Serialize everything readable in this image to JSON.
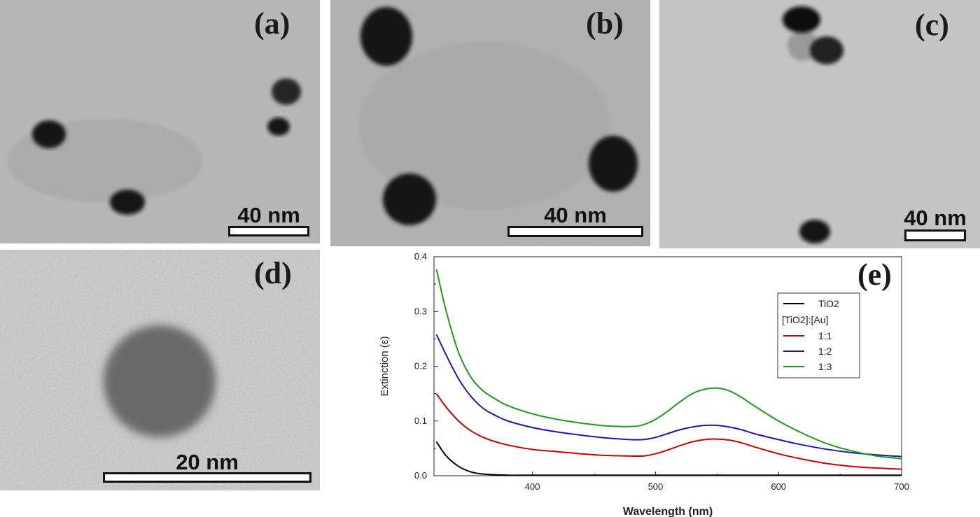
{
  "panels": {
    "a": {
      "label": "(a)",
      "scale": "40 nm"
    },
    "b": {
      "label": "(b)",
      "scale": "40 nm"
    },
    "c": {
      "label": "(c)",
      "scale": "40 nm"
    },
    "d": {
      "label": "(d)",
      "scale": "20 nm"
    },
    "e": {
      "label": "(e)"
    }
  },
  "chart_data": {
    "type": "line",
    "xlabel": "Wavelength (nm)",
    "ylabel": "Extinction (ε)",
    "xlim": [
      320,
      700
    ],
    "ylim": [
      0,
      0.4
    ],
    "xticks": [
      400,
      500,
      600,
      700
    ],
    "yticks": [
      0.0,
      0.1,
      0.2,
      0.3,
      0.4
    ],
    "grid": false,
    "legend_position": "top-right",
    "legend_group_title": "[TiO2]:[Au]",
    "series": [
      {
        "name": "TiO2",
        "color": "#000000",
        "x": [
          322,
          330,
          340,
          350,
          360,
          380,
          400,
          450,
          500,
          550,
          600,
          650,
          700
        ],
        "y": [
          0.062,
          0.036,
          0.017,
          0.007,
          0.003,
          0.001,
          0.001,
          0.001,
          0.001,
          0.001,
          0.001,
          0.001,
          0.001
        ]
      },
      {
        "name": "1:1",
        "color": "#cc0000",
        "x": [
          322,
          330,
          340,
          350,
          360,
          370,
          380,
          400,
          420,
          440,
          460,
          480,
          490,
          500,
          510,
          520,
          530,
          540,
          550,
          560,
          570,
          580,
          600,
          620,
          640,
          660,
          680,
          700
        ],
        "y": [
          0.15,
          0.125,
          0.1,
          0.082,
          0.07,
          0.062,
          0.056,
          0.048,
          0.044,
          0.04,
          0.037,
          0.036,
          0.036,
          0.04,
          0.047,
          0.055,
          0.062,
          0.066,
          0.067,
          0.065,
          0.06,
          0.053,
          0.04,
          0.03,
          0.022,
          0.017,
          0.014,
          0.012
        ]
      },
      {
        "name": "1:2",
        "color": "#1a1aaa",
        "x": [
          322,
          330,
          340,
          350,
          360,
          370,
          380,
          400,
          420,
          440,
          460,
          480,
          490,
          500,
          510,
          520,
          530,
          540,
          550,
          560,
          570,
          580,
          600,
          620,
          640,
          660,
          680,
          700
        ],
        "y": [
          0.258,
          0.22,
          0.177,
          0.145,
          0.123,
          0.11,
          0.1,
          0.088,
          0.08,
          0.074,
          0.069,
          0.066,
          0.066,
          0.07,
          0.077,
          0.084,
          0.089,
          0.092,
          0.092,
          0.089,
          0.084,
          0.077,
          0.066,
          0.056,
          0.048,
          0.042,
          0.038,
          0.035
        ]
      },
      {
        "name": "1:3",
        "color": "#1e9a1e",
        "x": [
          322,
          330,
          340,
          350,
          360,
          370,
          380,
          400,
          420,
          440,
          460,
          480,
          490,
          500,
          510,
          520,
          530,
          540,
          550,
          560,
          570,
          580,
          600,
          620,
          640,
          660,
          680,
          700
        ],
        "y": [
          0.377,
          0.3,
          0.225,
          0.18,
          0.155,
          0.14,
          0.128,
          0.113,
          0.103,
          0.096,
          0.091,
          0.09,
          0.093,
          0.103,
          0.118,
          0.135,
          0.15,
          0.158,
          0.16,
          0.155,
          0.143,
          0.128,
          0.1,
          0.077,
          0.058,
          0.045,
          0.036,
          0.031
        ]
      }
    ]
  }
}
